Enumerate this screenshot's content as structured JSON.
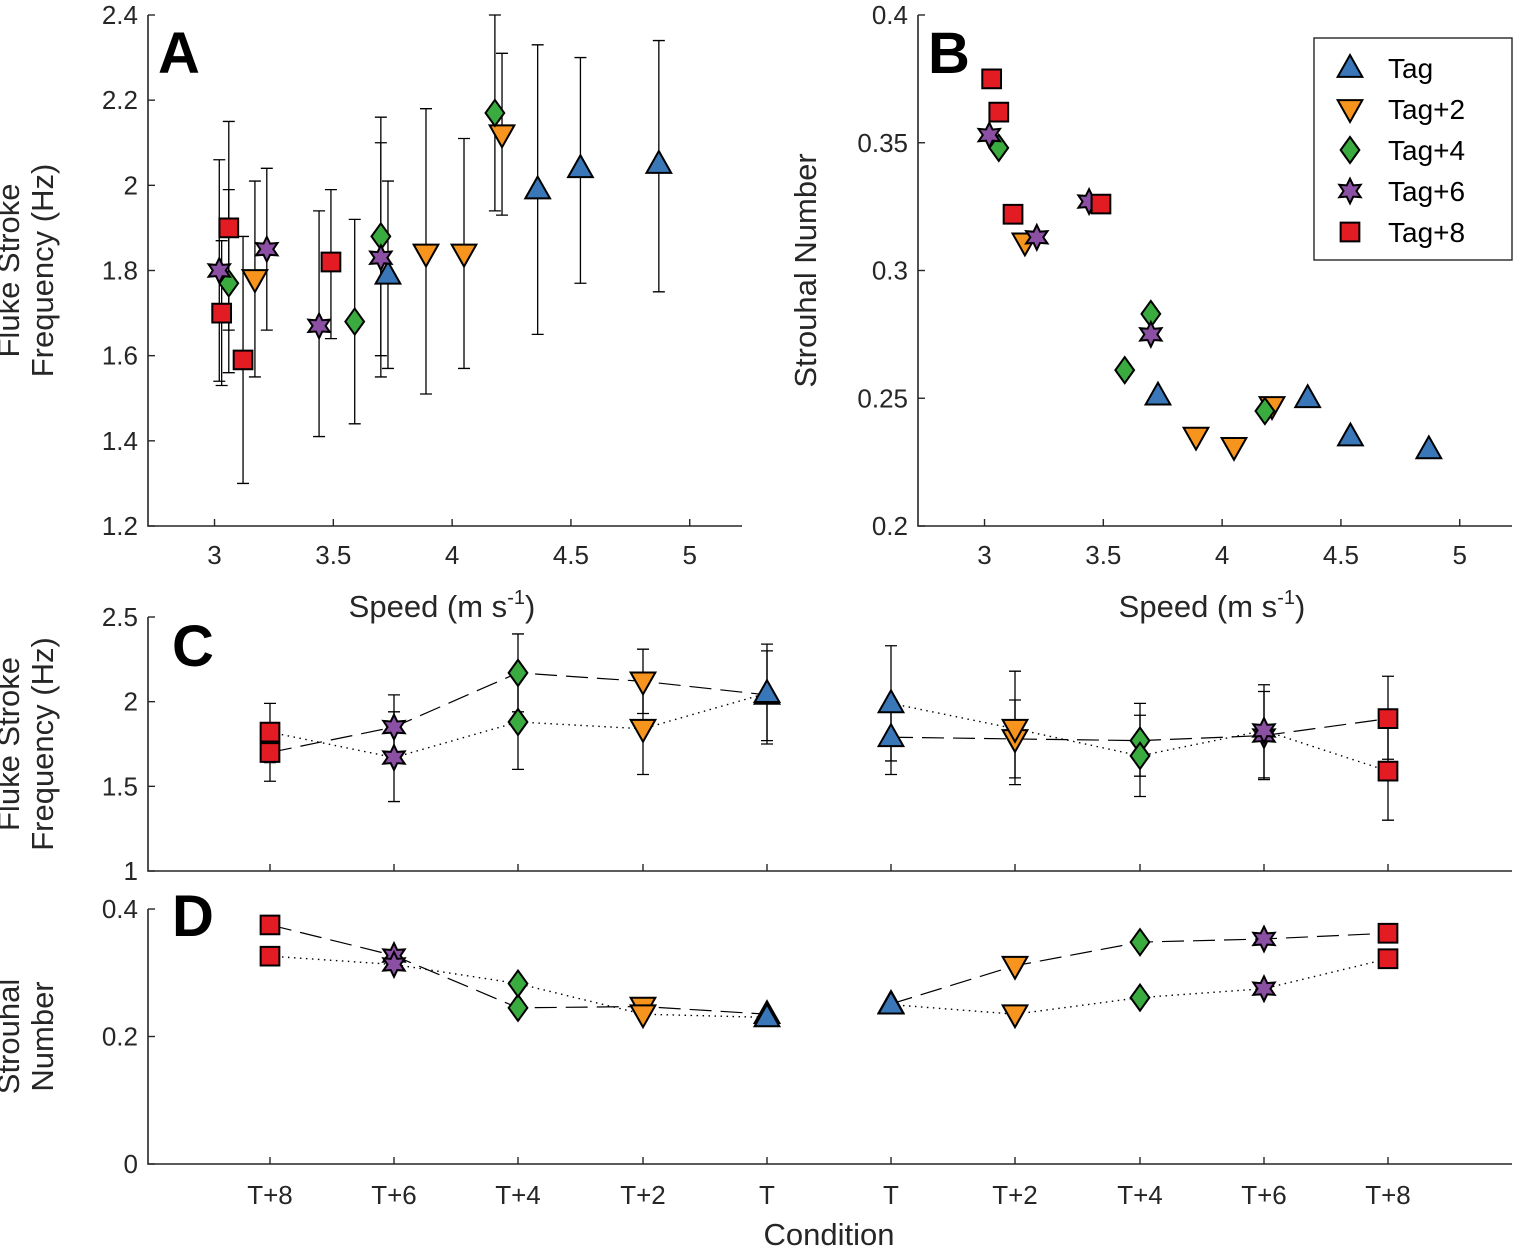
{
  "series_styles": [
    {
      "key": "Tag",
      "marker": "triangle-up",
      "color": "#3a77b8"
    },
    {
      "key": "Tag+2",
      "marker": "triangle-down",
      "color": "#f7941d"
    },
    {
      "key": "Tag+4",
      "marker": "diamond",
      "color": "#3aab3f"
    },
    {
      "key": "Tag+6",
      "marker": "hexagram",
      "color": "#8b4fa3"
    },
    {
      "key": "Tag+8",
      "marker": "square",
      "color": "#e31b23"
    }
  ],
  "chart_data": [
    {
      "panel": "A",
      "type": "scatter",
      "xlabel": "Speed (m s",
      "xlabel_sup": "-1",
      "xlabel_end": ")",
      "ylabel_lines": [
        "Fluke Stroke",
        "Frequency (Hz)"
      ],
      "xlim": [
        2.72,
        5.22
      ],
      "ylim": [
        1.2,
        2.4
      ],
      "xticks": [
        3,
        3.5,
        4,
        4.5,
        5
      ],
      "yticks": [
        1.2,
        1.4,
        1.6,
        1.8,
        2,
        2.2,
        2.4
      ],
      "xtick_labels": [
        "3",
        "3.5",
        "4",
        "4.5",
        "5"
      ],
      "ytick_labels": [
        "1.2",
        "1.4",
        "1.6",
        "1.8",
        "2",
        "2.2",
        "2.4"
      ],
      "series": [
        {
          "name": "Tag",
          "points": [
            {
              "x": 3.73,
              "y": 1.79,
              "lo": 1.57,
              "hi": 2.01
            },
            {
              "x": 4.36,
              "y": 1.99,
              "lo": 1.65,
              "hi": 2.33
            },
            {
              "x": 4.54,
              "y": 2.04,
              "lo": 1.77,
              "hi": 2.3
            },
            {
              "x": 4.87,
              "y": 2.05,
              "lo": 1.75,
              "hi": 2.34
            }
          ]
        },
        {
          "name": "Tag+2",
          "points": [
            {
              "x": 3.17,
              "y": 1.78,
              "lo": 1.55,
              "hi": 2.01
            },
            {
              "x": 3.89,
              "y": 1.84,
              "lo": 1.51,
              "hi": 2.18
            },
            {
              "x": 4.05,
              "y": 1.84,
              "lo": 1.57,
              "hi": 2.11
            },
            {
              "x": 4.21,
              "y": 2.12,
              "lo": 1.93,
              "hi": 2.31
            }
          ]
        },
        {
          "name": "Tag+4",
          "points": [
            {
              "x": 3.06,
              "y": 1.77,
              "lo": 1.56,
              "hi": 1.99
            },
            {
              "x": 3.59,
              "y": 1.68,
              "lo": 1.44,
              "hi": 1.92
            },
            {
              "x": 3.7,
              "y": 1.88,
              "lo": 1.6,
              "hi": 2.16
            },
            {
              "x": 4.18,
              "y": 2.17,
              "lo": 1.94,
              "hi": 2.4
            }
          ]
        },
        {
          "name": "Tag+6",
          "points": [
            {
              "x": 3.02,
              "y": 1.8,
              "lo": 1.54,
              "hi": 2.06
            },
            {
              "x": 3.22,
              "y": 1.85,
              "lo": 1.66,
              "hi": 2.04
            },
            {
              "x": 3.44,
              "y": 1.67,
              "lo": 1.41,
              "hi": 1.94
            },
            {
              "x": 3.7,
              "y": 1.83,
              "lo": 1.55,
              "hi": 2.1
            }
          ]
        },
        {
          "name": "Tag+8",
          "points": [
            {
              "x": 3.03,
              "y": 1.7,
              "lo": 1.53,
              "hi": 1.87
            },
            {
              "x": 3.06,
              "y": 1.9,
              "lo": 1.66,
              "hi": 2.15
            },
            {
              "x": 3.12,
              "y": 1.59,
              "lo": 1.3,
              "hi": 1.88
            },
            {
              "x": 3.49,
              "y": 1.82,
              "lo": 1.64,
              "hi": 1.99
            }
          ]
        }
      ]
    },
    {
      "panel": "B",
      "type": "scatter",
      "xlabel": "Speed (m s",
      "xlabel_sup": "-1",
      "xlabel_end": ")",
      "ylabel_lines": [
        "Strouhal Number"
      ],
      "xlim": [
        2.72,
        5.22
      ],
      "ylim": [
        0.2,
        0.4
      ],
      "xticks": [
        3,
        3.5,
        4,
        4.5,
        5
      ],
      "yticks": [
        0.2,
        0.25,
        0.3,
        0.35,
        0.4
      ],
      "xtick_labels": [
        "3",
        "3.5",
        "4",
        "4.5",
        "5"
      ],
      "ytick_labels": [
        "0.2",
        "0.25",
        "0.3",
        "0.35",
        "0.4"
      ],
      "legend": {
        "position": "top-right",
        "entries": [
          "Tag",
          "Tag+2",
          "Tag+4",
          "Tag+6",
          "Tag+8"
        ]
      },
      "series": [
        {
          "name": "Tag",
          "points": [
            {
              "x": 3.73,
              "y": 0.251
            },
            {
              "x": 4.36,
              "y": 0.25
            },
            {
              "x": 4.54,
              "y": 0.235
            },
            {
              "x": 4.87,
              "y": 0.23
            }
          ]
        },
        {
          "name": "Tag+2",
          "points": [
            {
              "x": 3.17,
              "y": 0.311
            },
            {
              "x": 3.89,
              "y": 0.235
            },
            {
              "x": 4.05,
              "y": 0.231
            },
            {
              "x": 4.21,
              "y": 0.247
            }
          ]
        },
        {
          "name": "Tag+4",
          "points": [
            {
              "x": 3.06,
              "y": 0.348
            },
            {
              "x": 3.59,
              "y": 0.261
            },
            {
              "x": 3.7,
              "y": 0.283
            },
            {
              "x": 4.18,
              "y": 0.245
            }
          ]
        },
        {
          "name": "Tag+6",
          "points": [
            {
              "x": 3.02,
              "y": 0.353
            },
            {
              "x": 3.22,
              "y": 0.313
            },
            {
              "x": 3.44,
              "y": 0.327
            },
            {
              "x": 3.7,
              "y": 0.275
            }
          ]
        },
        {
          "name": "Tag+8",
          "points": [
            {
              "x": 3.03,
              "y": 0.375
            },
            {
              "x": 3.06,
              "y": 0.362
            },
            {
              "x": 3.12,
              "y": 0.322
            },
            {
              "x": 3.49,
              "y": 0.326
            }
          ]
        }
      ]
    },
    {
      "panel": "C",
      "type": "line",
      "ylabel_lines": [
        "Fluke Stroke",
        "Frequency (Hz)"
      ],
      "categories": [
        "T+8",
        "T+6",
        "T+4",
        "T+2",
        "T",
        "T",
        "T+2",
        "T+4",
        "T+6",
        "T+8"
      ],
      "ylim": [
        1,
        2.5
      ],
      "yticks": [
        1,
        1.5,
        2,
        2.5
      ],
      "ytick_labels": [
        "1",
        "1.5",
        "2",
        "2.5"
      ],
      "lines": [
        {
          "style": "dashed",
          "points": [
            {
              "i": 0,
              "y": 1.7,
              "lo": 1.53,
              "hi": 1.87,
              "s": "Tag+8"
            },
            {
              "i": 1,
              "y": 1.85,
              "lo": 1.66,
              "hi": 2.04,
              "s": "Tag+6"
            },
            {
              "i": 2,
              "y": 2.17,
              "lo": 1.94,
              "hi": 2.4,
              "s": "Tag+4"
            },
            {
              "i": 3,
              "y": 2.12,
              "lo": 1.93,
              "hi": 2.31,
              "s": "Tag+2"
            },
            {
              "i": 4,
              "y": 2.04,
              "lo": 1.77,
              "hi": 2.3,
              "s": "Tag"
            }
          ]
        },
        {
          "style": "dotted",
          "points": [
            {
              "i": 0,
              "y": 1.82,
              "lo": 1.64,
              "hi": 1.99,
              "s": "Tag+8"
            },
            {
              "i": 1,
              "y": 1.67,
              "lo": 1.41,
              "hi": 1.94,
              "s": "Tag+6"
            },
            {
              "i": 2,
              "y": 1.88,
              "lo": 1.6,
              "hi": 2.16,
              "s": "Tag+4"
            },
            {
              "i": 3,
              "y": 1.84,
              "lo": 1.57,
              "hi": 2.11,
              "s": "Tag+2"
            },
            {
              "i": 4,
              "y": 2.05,
              "lo": 1.75,
              "hi": 2.34,
              "s": "Tag"
            }
          ]
        },
        {
          "style": "dashed",
          "points": [
            {
              "i": 5,
              "y": 1.79,
              "lo": 1.57,
              "hi": 2.01,
              "s": "Tag"
            },
            {
              "i": 6,
              "y": 1.78,
              "lo": 1.55,
              "hi": 2.01,
              "s": "Tag+2"
            },
            {
              "i": 7,
              "y": 1.77,
              "lo": 1.56,
              "hi": 1.99,
              "s": "Tag+4"
            },
            {
              "i": 8,
              "y": 1.8,
              "lo": 1.54,
              "hi": 2.06,
              "s": "Tag+6"
            },
            {
              "i": 9,
              "y": 1.9,
              "lo": 1.66,
              "hi": 2.15,
              "s": "Tag+8"
            }
          ]
        },
        {
          "style": "dotted",
          "points": [
            {
              "i": 5,
              "y": 1.99,
              "lo": 1.65,
              "hi": 2.33,
              "s": "Tag"
            },
            {
              "i": 6,
              "y": 1.84,
              "lo": 1.51,
              "hi": 2.18,
              "s": "Tag+2"
            },
            {
              "i": 7,
              "y": 1.68,
              "lo": 1.44,
              "hi": 1.92,
              "s": "Tag+4"
            },
            {
              "i": 8,
              "y": 1.83,
              "lo": 1.55,
              "hi": 2.1,
              "s": "Tag+6"
            },
            {
              "i": 9,
              "y": 1.59,
              "lo": 1.3,
              "hi": 1.88,
              "s": "Tag+8"
            }
          ]
        }
      ]
    },
    {
      "panel": "D",
      "type": "line",
      "xlabel": "Condition",
      "ylabel_lines": [
        "Strouhal",
        "Number"
      ],
      "categories": [
        "T+8",
        "T+6",
        "T+4",
        "T+2",
        "T",
        "T",
        "T+2",
        "T+4",
        "T+6",
        "T+8"
      ],
      "ylim": [
        0,
        0.4
      ],
      "yticks": [
        0,
        0.2,
        0.4
      ],
      "ytick_labels": [
        "0",
        "0.2",
        "0.4"
      ],
      "lines": [
        {
          "style": "dashed",
          "points": [
            {
              "i": 0,
              "y": 0.375,
              "s": "Tag+8"
            },
            {
              "i": 1,
              "y": 0.327,
              "s": "Tag+6"
            },
            {
              "i": 2,
              "y": 0.245,
              "s": "Tag+4"
            },
            {
              "i": 3,
              "y": 0.247,
              "s": "Tag+2"
            },
            {
              "i": 4,
              "y": 0.235,
              "s": "Tag"
            }
          ]
        },
        {
          "style": "dotted",
          "points": [
            {
              "i": 0,
              "y": 0.326,
              "s": "Tag+8"
            },
            {
              "i": 1,
              "y": 0.313,
              "s": "Tag+6"
            },
            {
              "i": 2,
              "y": 0.283,
              "s": "Tag+4"
            },
            {
              "i": 3,
              "y": 0.235,
              "s": "Tag+2"
            },
            {
              "i": 4,
              "y": 0.23,
              "s": "Tag"
            }
          ]
        },
        {
          "style": "dashed",
          "points": [
            {
              "i": 5,
              "y": 0.251,
              "s": "Tag"
            },
            {
              "i": 6,
              "y": 0.311,
              "s": "Tag+2"
            },
            {
              "i": 7,
              "y": 0.348,
              "s": "Tag+4"
            },
            {
              "i": 8,
              "y": 0.353,
              "s": "Tag+6"
            },
            {
              "i": 9,
              "y": 0.362,
              "s": "Tag+8"
            }
          ]
        },
        {
          "style": "dotted",
          "points": [
            {
              "i": 5,
              "y": 0.25,
              "s": "Tag"
            },
            {
              "i": 6,
              "y": 0.235,
              "s": "Tag+2"
            },
            {
              "i": 7,
              "y": 0.261,
              "s": "Tag+4"
            },
            {
              "i": 8,
              "y": 0.275,
              "s": "Tag+6"
            },
            {
              "i": 9,
              "y": 0.322,
              "s": "Tag+8"
            }
          ]
        }
      ]
    }
  ]
}
